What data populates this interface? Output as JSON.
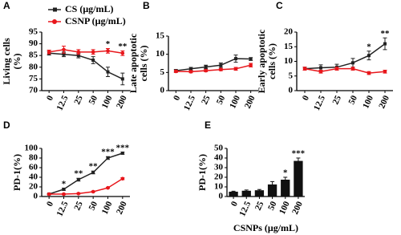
{
  "chart_data": [
    {
      "type": "line",
      "label": "A",
      "ylabel": [
        "Living cells",
        "(%)"
      ],
      "categories": [
        "0",
        "12.5",
        "25",
        "50",
        "100",
        "200"
      ],
      "ylim": [
        70,
        95
      ],
      "yticks": [
        70,
        75,
        80,
        85,
        90,
        95
      ],
      "legend": "top",
      "series": [
        {
          "name": "CS (μg/mL)",
          "color": "#222222",
          "marker": "square",
          "values": [
            86,
            85.5,
            85,
            83,
            78,
            75
          ],
          "errors": [
            0.8,
            1,
            1,
            1.5,
            2,
            2.5
          ]
        },
        {
          "name": "CSNP (μg/mL)",
          "color": "#e8161b",
          "marker": "circle",
          "values": [
            86.5,
            87.5,
            86.5,
            86.5,
            87,
            86
          ],
          "errors": [
            0.8,
            1.5,
            1,
            1,
            1,
            1
          ]
        }
      ],
      "stars": [
        null,
        null,
        null,
        null,
        "*",
        "**"
      ]
    },
    {
      "type": "line",
      "label": "B",
      "ylabel": [
        "Late apoptotic",
        "cells (%)"
      ],
      "categories": [
        "0",
        "12.5",
        "25",
        "50",
        "100",
        "200"
      ],
      "ylim": [
        0,
        15
      ],
      "yticks": [
        0,
        5,
        10,
        15
      ],
      "series": [
        {
          "color": "#222222",
          "marker": "square",
          "values": [
            5.5,
            6,
            6.5,
            7,
            8.8,
            8.7
          ],
          "errors": [
            0.3,
            0.4,
            0.5,
            0.6,
            1,
            0.4
          ]
        },
        {
          "color": "#e8161b",
          "marker": "circle",
          "values": [
            5.3,
            5.2,
            5.5,
            5.8,
            6,
            7
          ],
          "errors": [
            0.3,
            0.3,
            0.3,
            0.3,
            0.4,
            0.5
          ]
        }
      ]
    },
    {
      "type": "line",
      "label": "C",
      "ylabel": [
        "Early apoptotic",
        "cells (%)"
      ],
      "categories": [
        "0",
        "12.5",
        "25",
        "50",
        "100",
        "200"
      ],
      "ylim": [
        0,
        20
      ],
      "yticks": [
        0,
        5,
        10,
        15,
        20
      ],
      "series": [
        {
          "color": "#222222",
          "marker": "square",
          "values": [
            7.5,
            7.8,
            8,
            9.5,
            12,
            16
          ],
          "errors": [
            0.5,
            1,
            1,
            1.5,
            1.5,
            2
          ]
        },
        {
          "color": "#e8161b",
          "marker": "circle",
          "values": [
            7.5,
            6.5,
            7.5,
            7.5,
            6,
            6.5
          ],
          "errors": [
            0.5,
            0.5,
            0.5,
            0.5,
            0.5,
            0.5
          ]
        }
      ],
      "stars": [
        null,
        null,
        null,
        null,
        "*",
        "**"
      ]
    },
    {
      "type": "line",
      "label": "D",
      "ylabel": [
        "PD-1(%)"
      ],
      "categories": [
        "0",
        "12.5",
        "25",
        "50",
        "100",
        "200"
      ],
      "ylim": [
        0,
        100
      ],
      "yticks": [
        0,
        20,
        40,
        60,
        80,
        100
      ],
      "series": [
        {
          "color": "#222222",
          "marker": "square",
          "values": [
            5,
            15,
            35,
            50,
            80,
            90
          ],
          "errors": [
            1,
            2,
            3,
            3,
            3,
            2
          ]
        },
        {
          "color": "#e8161b",
          "marker": "circle",
          "values": [
            5,
            5,
            6,
            10,
            18,
            37
          ],
          "errors": [
            1,
            1,
            1,
            1,
            1,
            2
          ]
        }
      ],
      "stars": [
        null,
        "*",
        "**",
        "**",
        "***",
        "***"
      ]
    },
    {
      "type": "bar",
      "label": "E",
      "ylabel": [
        "PD-1(%)"
      ],
      "xlabel": "CSNPs (μg/mL)",
      "categories": [
        "0",
        "12.5",
        "25",
        "50",
        "100",
        "200"
      ],
      "ylim": [
        0,
        50
      ],
      "yticks": [
        0,
        10,
        20,
        30,
        40,
        50
      ],
      "color": "#111111",
      "values": [
        5,
        6,
        6.5,
        12.5,
        17.5,
        37
      ],
      "errors": [
        0.5,
        0.8,
        0.8,
        3,
        2.5,
        3
      ],
      "stars": [
        null,
        null,
        null,
        null,
        "*",
        "***"
      ]
    }
  ]
}
